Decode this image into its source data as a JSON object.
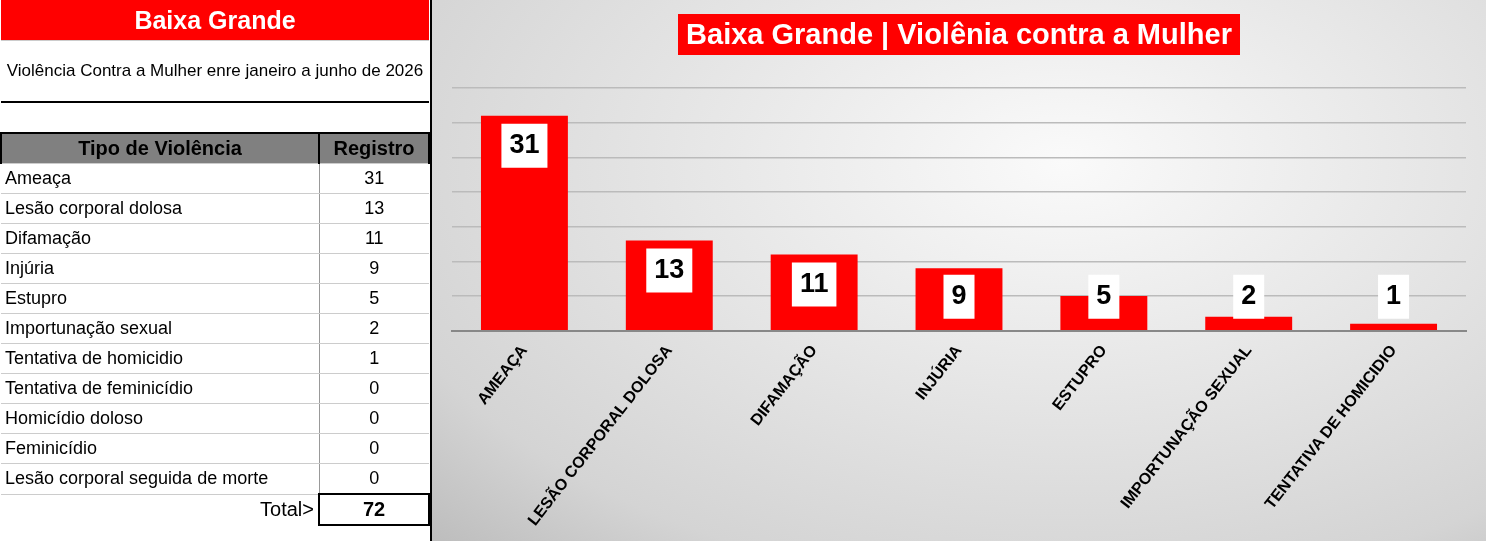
{
  "chart_data": [
    {
      "type": "other",
      "title": "Baixa Grande",
      "subtitle": "Violência Contra a Mulher enre janeiro a junho de 2026",
      "xlabel": "Tipo de Violência",
      "ylabel": "Registro",
      "categories": [
        "Ameaça",
        "Lesão corporal dolosa",
        "Difamação",
        "Injúria",
        "Estupro",
        "Importunação sexual",
        "Tentativa de homicidio",
        "Tentativa de feminicídio",
        "Homicídio doloso",
        "Feminicídio",
        "Lesão corporal seguida de morte"
      ],
      "values": [
        31,
        13,
        11,
        9,
        5,
        2,
        1,
        0,
        0,
        0,
        0
      ],
      "data_labels": true,
      "annotations": [
        "Total>"
      ],
      "totals": [
        "72"
      ]
    },
    {
      "type": "bar",
      "title": "Baixa Grande | Violênia contra a Mulher",
      "categories": [
        "AMEAÇA",
        "LESÃO CORPORAL DOLOSA",
        "DIFAMAÇÃO",
        "INJÚRIA",
        "ESTUPRO",
        "IMPORTUNAÇÃO SEXUAL",
        "TENTATIVA DE HOMICIDIO"
      ],
      "values": [
        31,
        13,
        11,
        9,
        5,
        2,
        1
      ],
      "color": "#ff0000",
      "ylim": [
        0,
        35
      ],
      "yticks": [
        {
          "value": 0,
          "label": null
        },
        {
          "value": 5,
          "label": null
        },
        {
          "value": 10,
          "label": null
        },
        {
          "value": 15,
          "label": null
        },
        {
          "value": 20,
          "label": null
        },
        {
          "value": 25,
          "label": null
        },
        {
          "value": 30,
          "label": null
        },
        {
          "value": 35,
          "label": null
        }
      ],
      "grid": "y",
      "tick_labels": "x",
      "data_labels": true
    }
  ]
}
